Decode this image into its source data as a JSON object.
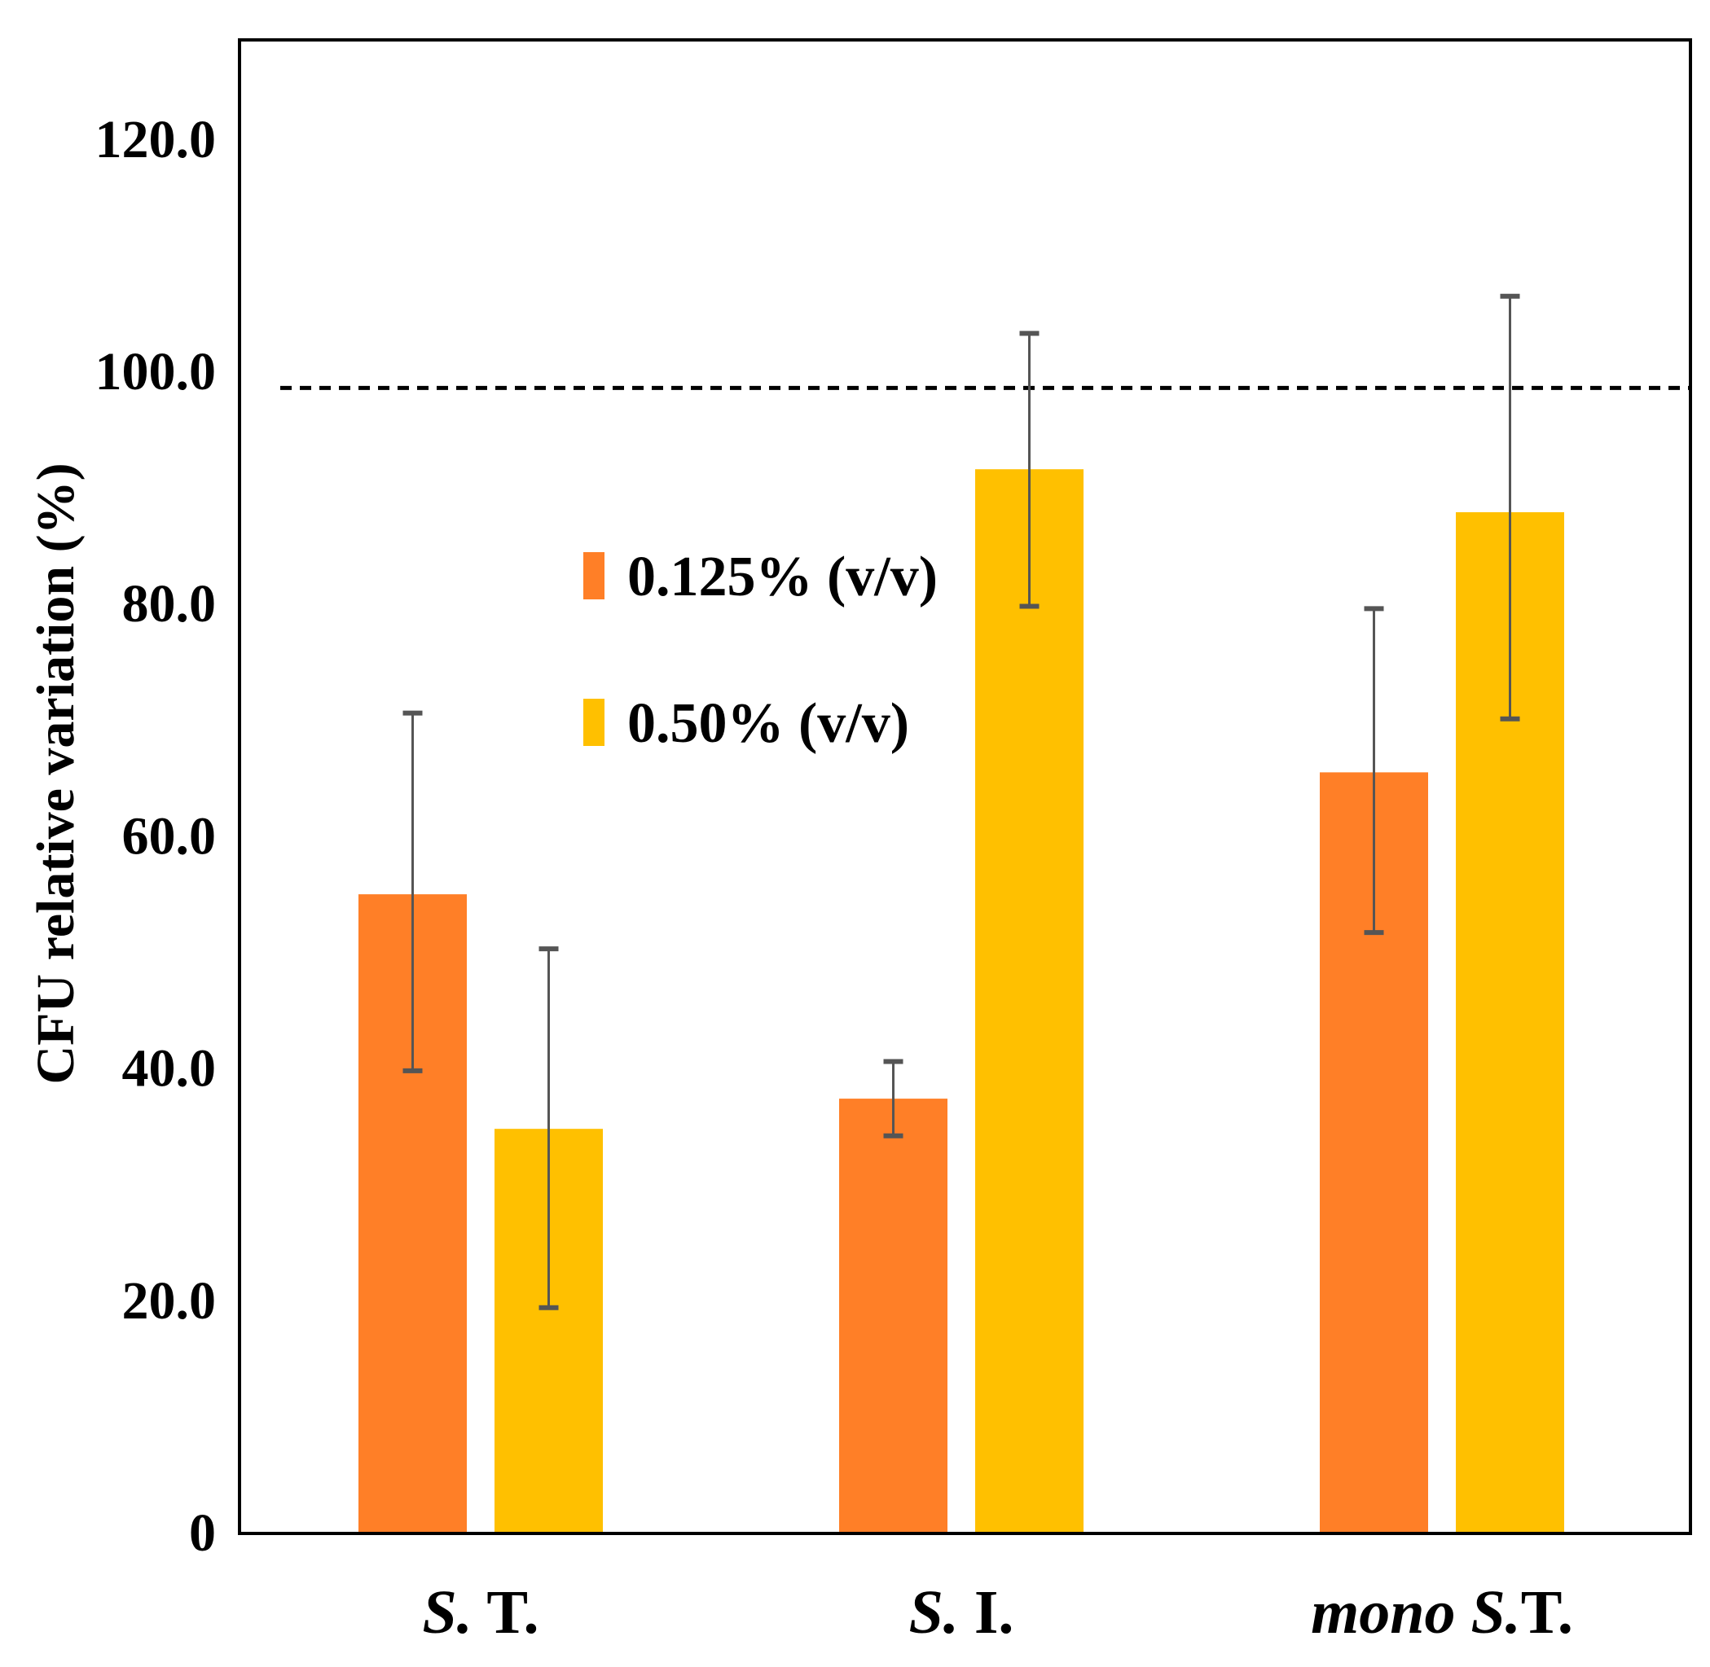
{
  "chart_data": {
    "type": "bar",
    "title": "",
    "xlabel": "",
    "ylabel": "CFU relative variation (%)",
    "ylim": [
      0,
      128
    ],
    "ytick_values": [
      0,
      20,
      40,
      60,
      80,
      100,
      120
    ],
    "ytick_labels": [
      "0",
      "20.0",
      "40.0",
      "60.0",
      "80.0",
      "100.0",
      "120.0"
    ],
    "reference_line": 98.5,
    "categories": [
      {
        "italic": "S.",
        "normal": " T."
      },
      {
        "italic": "S.",
        "normal": " I."
      },
      {
        "italic": "mono S.",
        "normal": "T."
      }
    ],
    "series": [
      {
        "name": "0.125% (v/v)",
        "color": "#FF7F27",
        "values": [
          54.9,
          37.3,
          65.4
        ],
        "err_low": [
          39.7,
          34.1,
          51.6
        ],
        "err_high": [
          70.5,
          40.5,
          79.5
        ]
      },
      {
        "name": "0.50% (v/v)",
        "color": "#FFC000",
        "values": [
          34.7,
          91.5,
          87.8
        ],
        "err_low": [
          19.3,
          79.7,
          70.0
        ],
        "err_high": [
          50.2,
          103.2,
          106.4
        ]
      }
    ],
    "legend_position": "center"
  }
}
